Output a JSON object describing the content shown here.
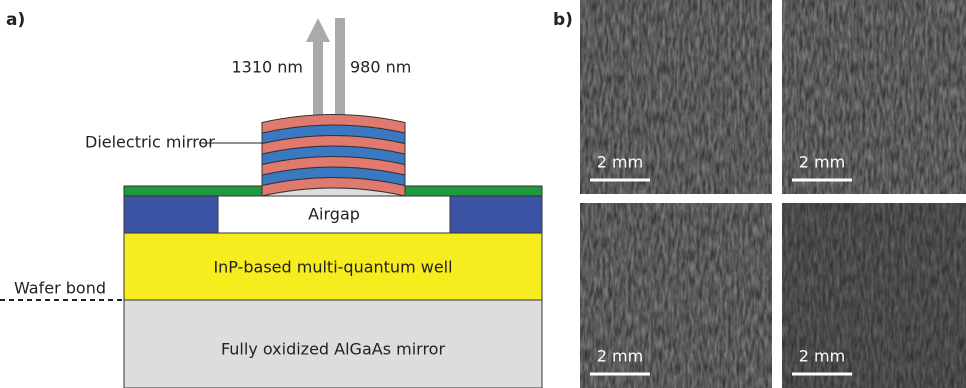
{
  "panel_a": {
    "label": "a)",
    "arrow_up_label": "1310 nm",
    "arrow_down_label": "980 nm",
    "mirror_label": "Dielectric mirror",
    "airgap_label": "Airgap",
    "mqw_label": "InP-based multi-quantum well",
    "bond_label": "Wafer bond",
    "substrate_label": "Fully oxidized AlGaAs mirror"
  },
  "panel_b": {
    "label": "b)",
    "images": [
      {
        "scale_label": "2 mm"
      },
      {
        "scale_label": "2 mm"
      },
      {
        "scale_label": "2 mm"
      },
      {
        "scale_label": "2 mm"
      }
    ]
  }
}
